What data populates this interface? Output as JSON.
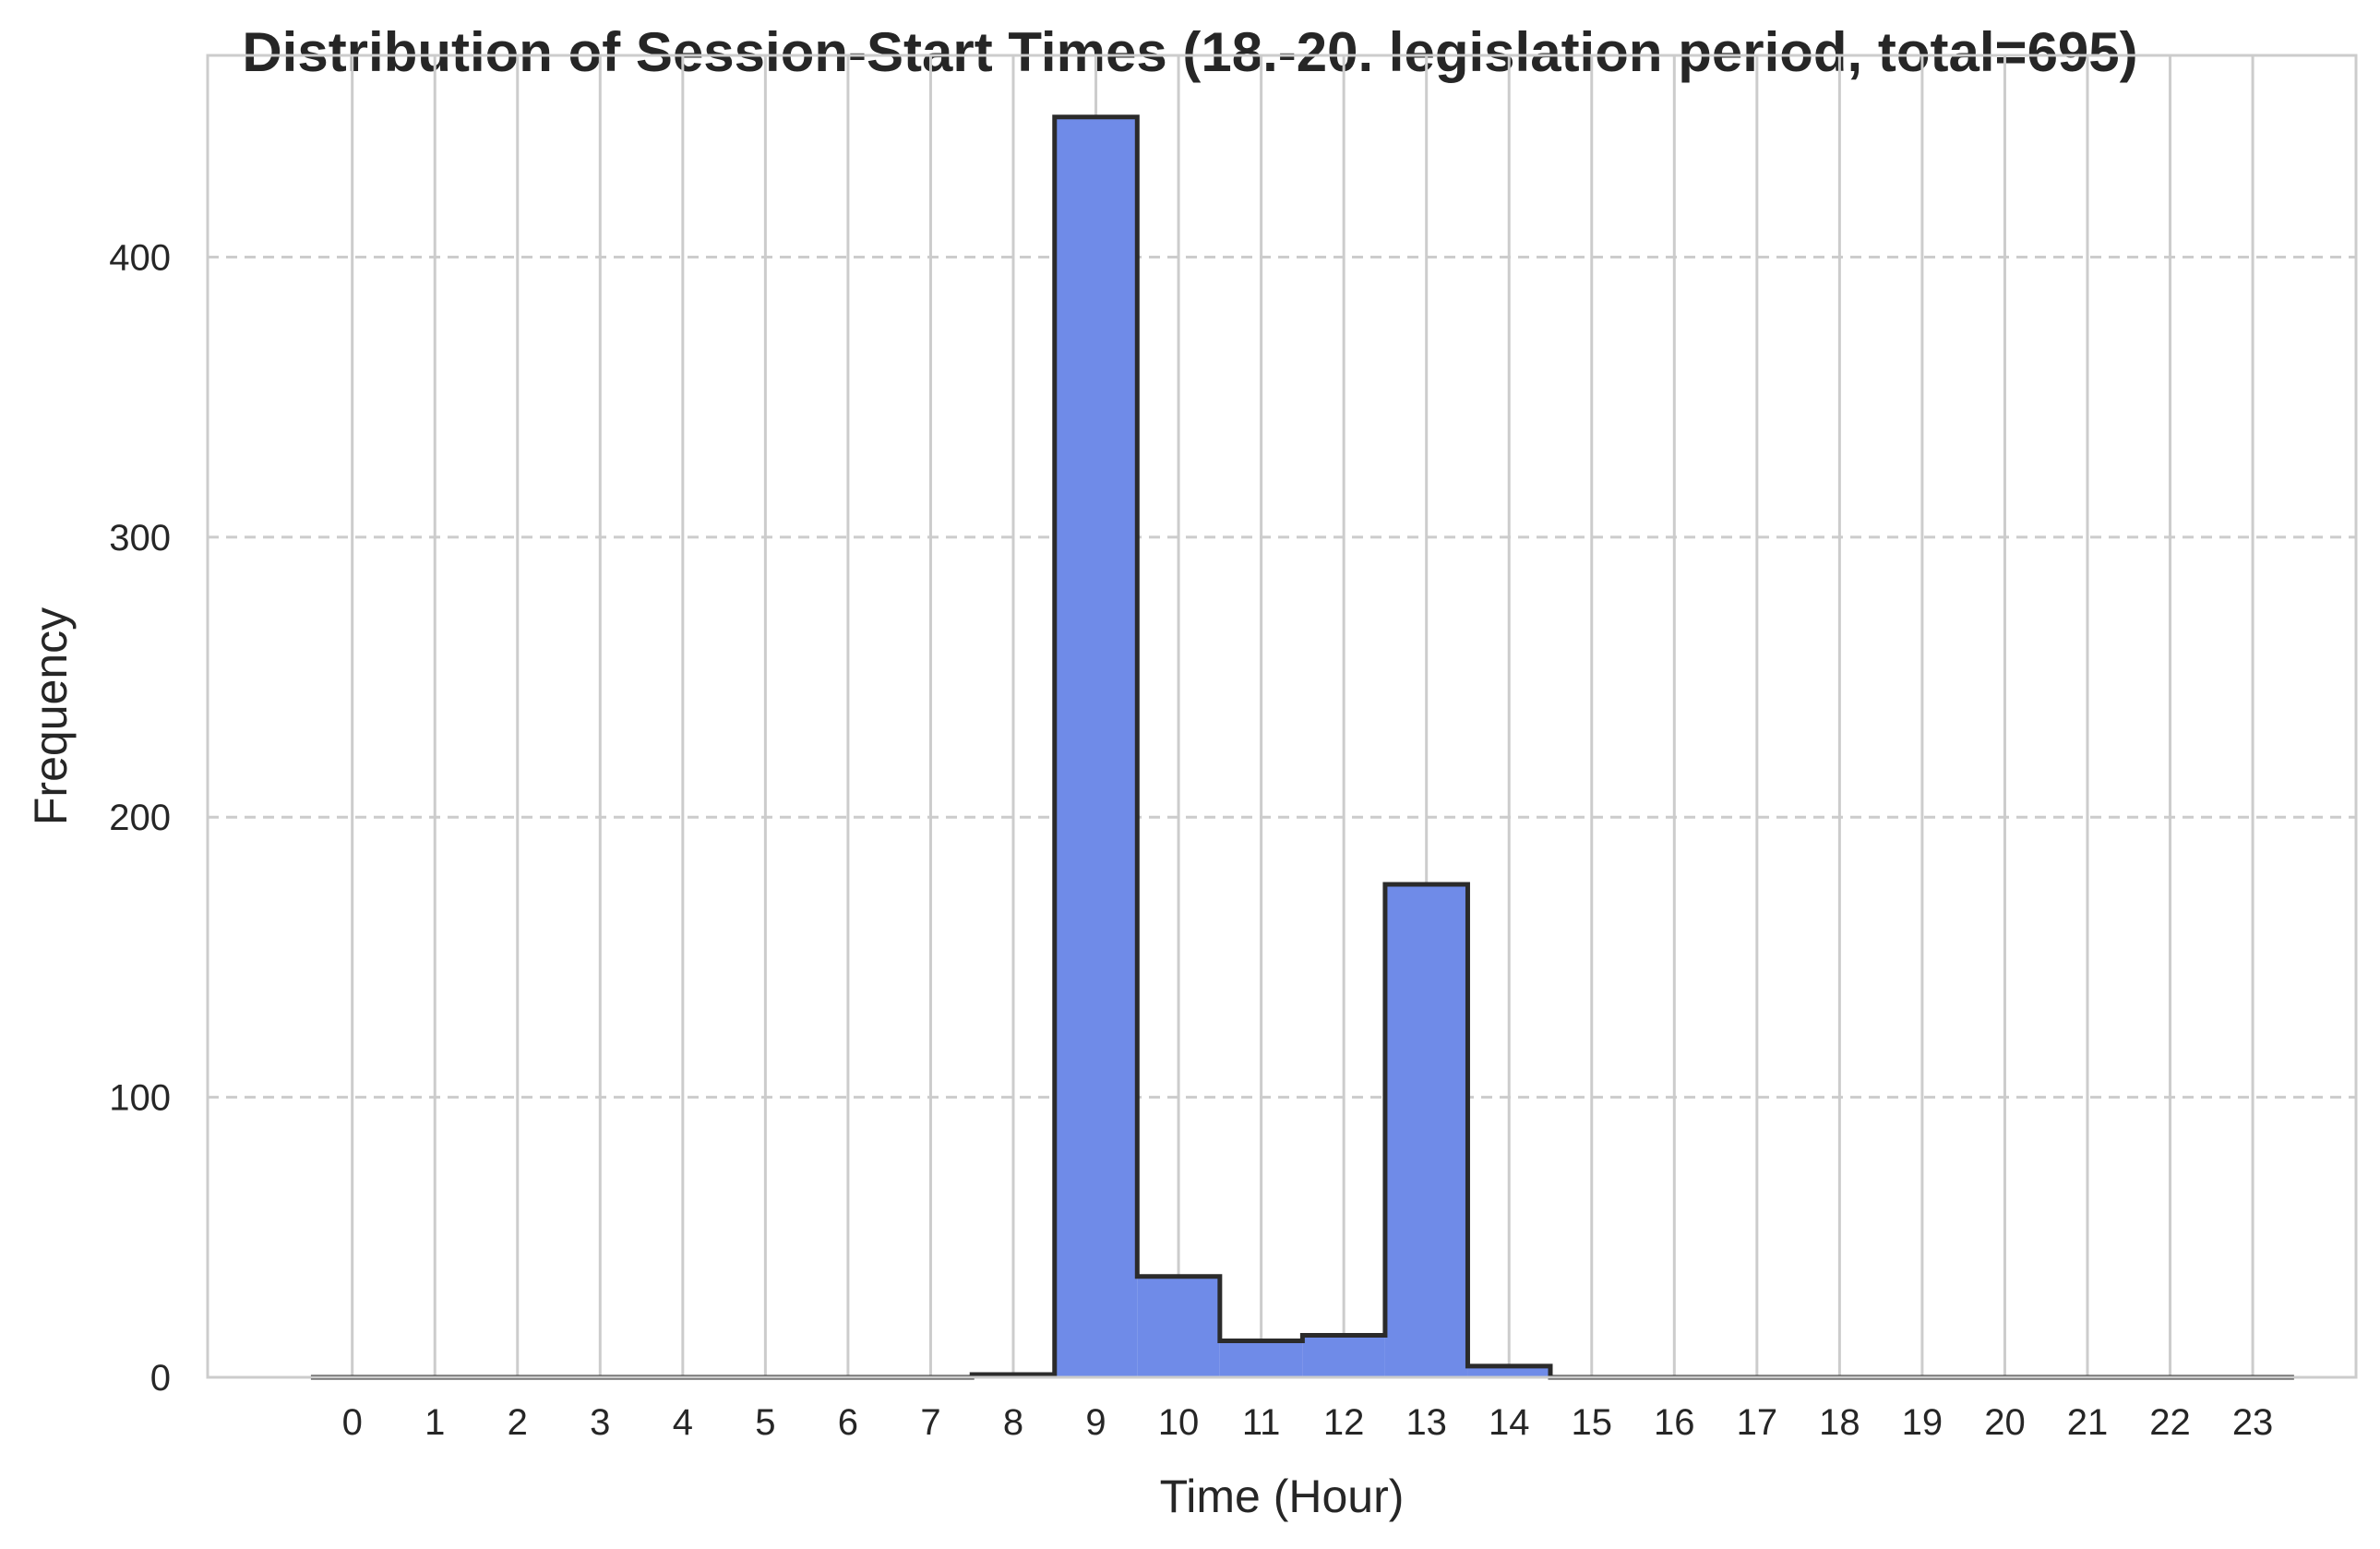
{
  "chart_data": {
    "type": "bar",
    "title": "Distribution of Session-Start Times (18.-20. legislation period, total=695)",
    "xlabel": "Time (Hour)",
    "ylabel": "Frequency",
    "x_ticks": [
      "0",
      "1",
      "2",
      "3",
      "4",
      "5",
      "6",
      "7",
      "8",
      "9",
      "10",
      "11",
      "12",
      "13",
      "14",
      "15",
      "16",
      "17",
      "18",
      "19",
      "20",
      "21",
      "22",
      "23"
    ],
    "categories": [
      "0",
      "1",
      "2",
      "3",
      "4",
      "5",
      "6",
      "7",
      "8",
      "9",
      "10",
      "11",
      "12",
      "13",
      "14",
      "15",
      "16",
      "17",
      "18",
      "19",
      "20",
      "21",
      "22",
      "23"
    ],
    "values": [
      0,
      0,
      0,
      0,
      0,
      0,
      0,
      0,
      1,
      450,
      36,
      13,
      15,
      176,
      4,
      0,
      0,
      0,
      0,
      0,
      0,
      0,
      0,
      0
    ],
    "y_ticks": [
      0,
      100,
      200,
      300,
      400
    ],
    "ylim": [
      0,
      472
    ],
    "xlim": [
      -1.75,
      24.25
    ],
    "grid": {
      "x": true,
      "y": true,
      "y_style": "dashed"
    },
    "colors": {
      "bar_fill": "#6F8BE8",
      "bar_edge": "#2B2B2B",
      "grid": "#CCCCCC",
      "frame": "#CCCCCC",
      "text": "#262626"
    }
  }
}
